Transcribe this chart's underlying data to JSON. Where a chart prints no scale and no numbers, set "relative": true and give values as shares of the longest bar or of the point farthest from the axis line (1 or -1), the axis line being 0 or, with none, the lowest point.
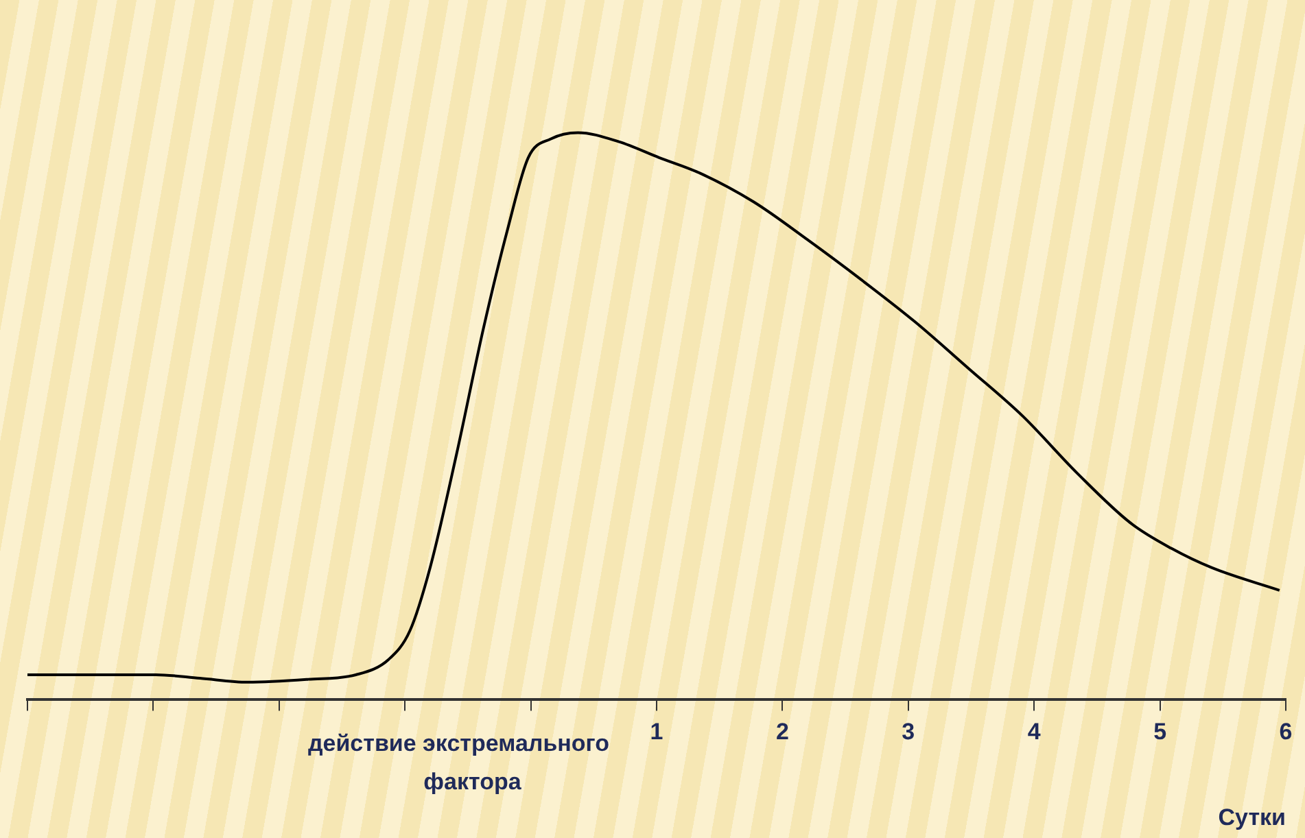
{
  "chart_data": {
    "type": "line",
    "relative": true,
    "xlabel": "Сутки",
    "marker": "none",
    "grid": false,
    "legend": false,
    "annotations": [
      "действие экстремального фактора"
    ],
    "xlim": [
      -4,
      6
    ],
    "xticks": [
      {
        "value": -4,
        "label": null
      },
      {
        "value": -3,
        "label": null
      },
      {
        "value": -2,
        "label": null
      },
      {
        "value": -1,
        "label": null
      },
      {
        "value": 0,
        "label": null
      },
      1,
      2,
      3,
      4,
      5,
      6
    ],
    "series": [
      {
        "color": "#000000",
        "x": [
          -4.0,
          -2.98,
          -2.63,
          -2.25,
          -1.77,
          -1.39,
          -1.13,
          -0.96,
          -0.8,
          -0.59,
          -0.375,
          -0.18,
          -0.02,
          0.16,
          0.375,
          0.7,
          1.02,
          1.34,
          1.77,
          2.2,
          2.63,
          3.05,
          3.48,
          3.91,
          4.34,
          4.77,
          5.09,
          5.41,
          5.95
        ],
        "values": [
          0.044,
          0.044,
          0.038,
          0.031,
          0.036,
          0.044,
          0.071,
          0.122,
          0.233,
          0.433,
          0.656,
          0.833,
          0.956,
          0.989,
          1.0,
          0.984,
          0.956,
          0.929,
          0.878,
          0.811,
          0.74,
          0.667,
          0.584,
          0.5,
          0.4,
          0.311,
          0.267,
          0.233,
          0.193
        ]
      }
    ]
  }
}
